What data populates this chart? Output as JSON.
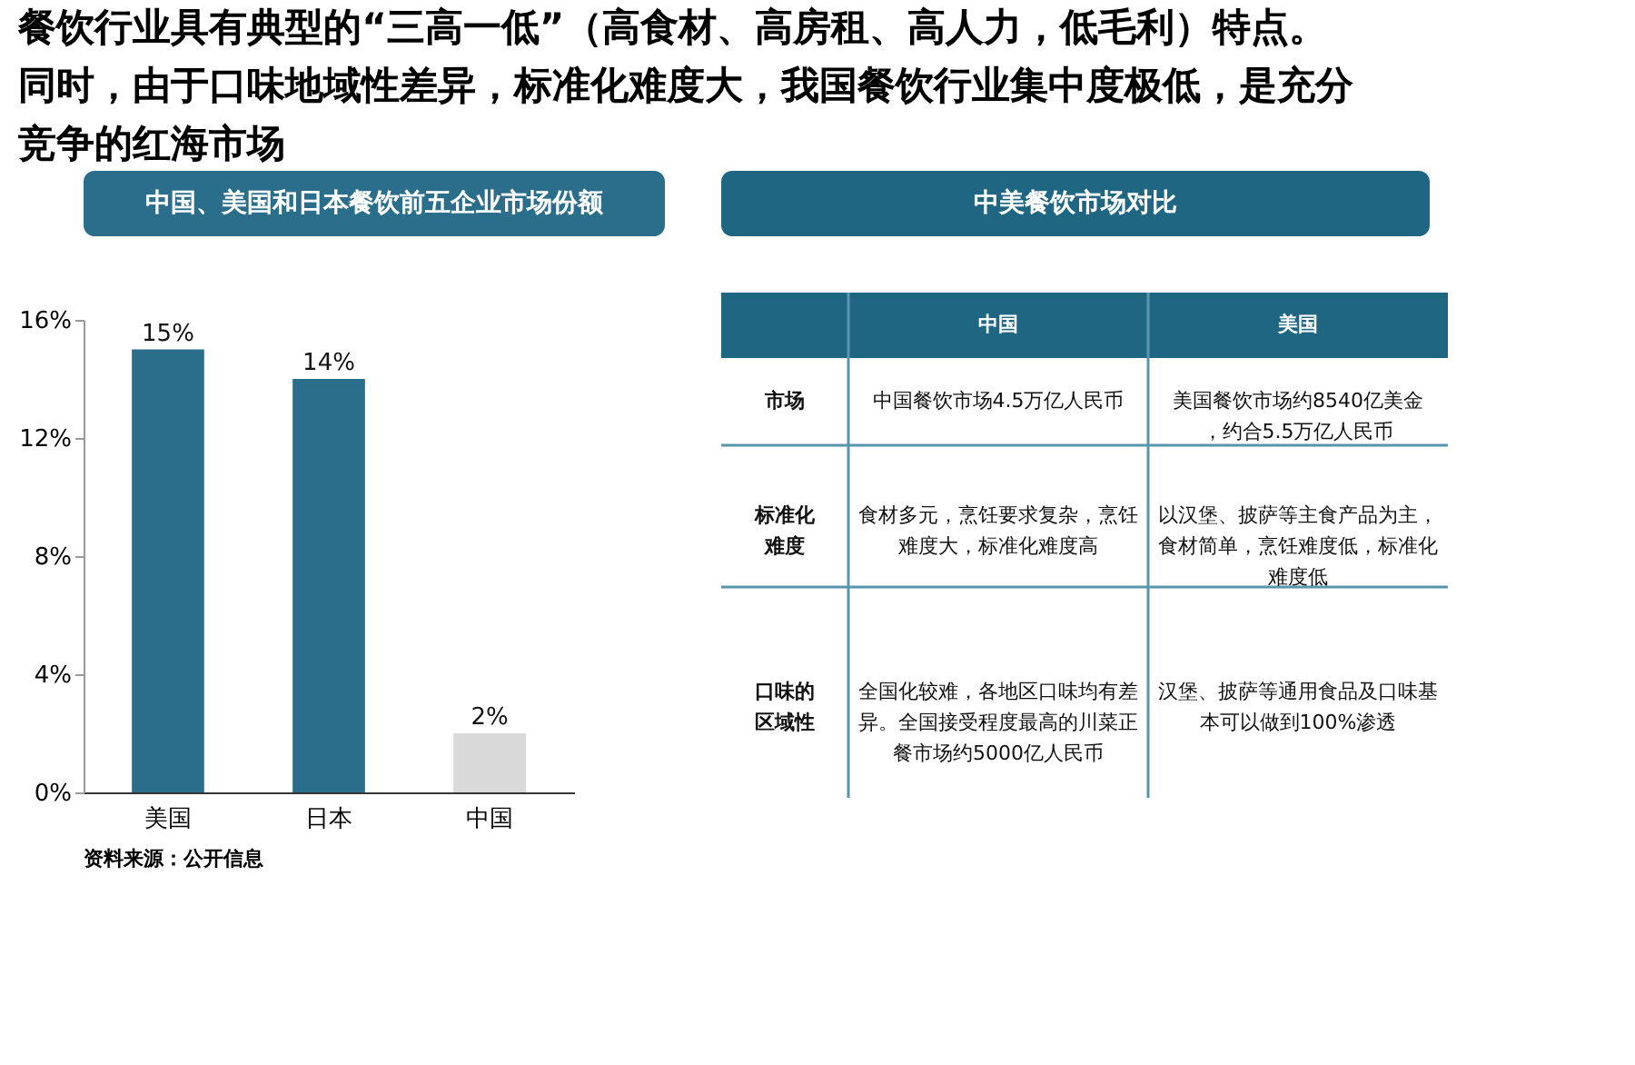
{
  "chart_data": [
    {
      "type": "bar",
      "title": "中国、美国和日本餐饮前五企业市场份额",
      "categories": [
        "美国",
        "日本",
        "中国"
      ],
      "values": [
        15,
        14,
        2
      ],
      "colors": [
        "#2b6e8c",
        "#2b6e8c",
        "#d9d9d9"
      ],
      "value_labels": [
        "15%",
        "14%",
        "2%"
      ],
      "ylim": [
        0,
        16
      ],
      "yticks": [
        {
          "value": 0,
          "label": "0%"
        },
        {
          "value": 4,
          "label": "4%"
        },
        {
          "value": 8,
          "label": "8%"
        },
        {
          "value": 12,
          "label": "12%"
        },
        {
          "value": 16,
          "label": "16%"
        }
      ],
      "grid": false,
      "annotations": [
        "餐饮行业具有典型的“三高一低”（高食材、高房租、高人力，低毛利）特点。同时，由于口味地域性差异，标准化难度大，我国餐饮行业集中度极低，是充分竞争的红海市场",
        "资料来源：公开信息"
      ]
    },
    {
      "type": "other",
      "title": "中美餐饮市场对比",
      "color": "#1f6683",
      "categories": [
        "中国",
        "美国"
      ],
      "y_categories": [
        "市场",
        "标准化难度",
        "口味的区域性"
      ],
      "cell_labels": [
        [
          "中国餐饮市场4.5万亿人民币",
          "美国餐饮市场约8540亿美金，约合5.5万亿人民币"
        ],
        [
          "食材多元，烹饪要求复杂，烹饪难度大，标准化难度高",
          "以汉堡、披萨等主食产品为主，食材简单，烹饪难度低，标准化难度低"
        ],
        [
          "全国化较难，各地区口味均有差异。全国接受程度最高的川菜正餐市场约5000亿人民币",
          "汉堡、披萨等通用食品及口味基本可以做到100%渗透"
        ]
      ]
    }
  ]
}
